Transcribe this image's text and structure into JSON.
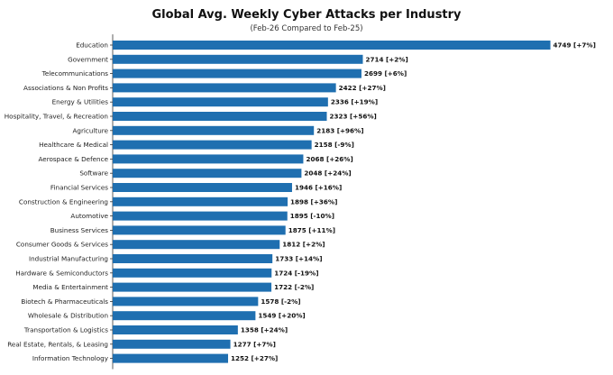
{
  "chart_data": {
    "type": "bar",
    "orientation": "horizontal",
    "title": "Global Avg. Weekly Cyber Attacks per Industry",
    "subtitle": "(Feb-26 Compared to Feb-25)",
    "xlim": [
      0,
      4900
    ],
    "grid": false,
    "bar_color": "#1f6fb0",
    "categories": [
      "Education",
      "Government",
      "Telecommunications",
      "Associations & Non Profits",
      "Energy & Utilities",
      "Hospitality, Travel, & Recreation",
      "Agriculture",
      "Healthcare & Medical",
      "Aerospace & Defence",
      "Software",
      "Financial Services",
      "Construction & Engineering",
      "Automotive",
      "Business Services",
      "Consumer Goods & Services",
      "Industrial Manufacturing",
      "Hardware & Semiconductors",
      "Media & Entertainment",
      "Biotech & Pharmaceuticals",
      "Wholesale & Distribution",
      "Transportation & Logistics",
      "Real Estate, Rentals, & Leasing",
      "Information Technology"
    ],
    "values": [
      4749,
      2714,
      2699,
      2422,
      2336,
      2323,
      2183,
      2158,
      2068,
      2048,
      1946,
      1898,
      1895,
      1875,
      1812,
      1733,
      1724,
      1722,
      1578,
      1549,
      1358,
      1277,
      1252
    ],
    "data_labels": [
      "4749 [+7%]",
      "2714 [+2%]",
      "2699 [+6%]",
      "2422 [+27%]",
      "2336 [+19%]",
      "2323 [+56%]",
      "2183 [+96%]",
      "2158 [-9%]",
      "2068 [+26%]",
      "2048 [+24%]",
      "1946 [+16%]",
      "1898 [+36%]",
      "1895 [-10%]",
      "1875 [+11%]",
      "1812 [+2%]",
      "1733 [+14%]",
      "1724 [-19%]",
      "1722 [-2%]",
      "1578 [-2%]",
      "1549 [+20%]",
      "1358 [+24%]",
      "1277 [+7%]",
      "1252 [+27%]"
    ]
  }
}
